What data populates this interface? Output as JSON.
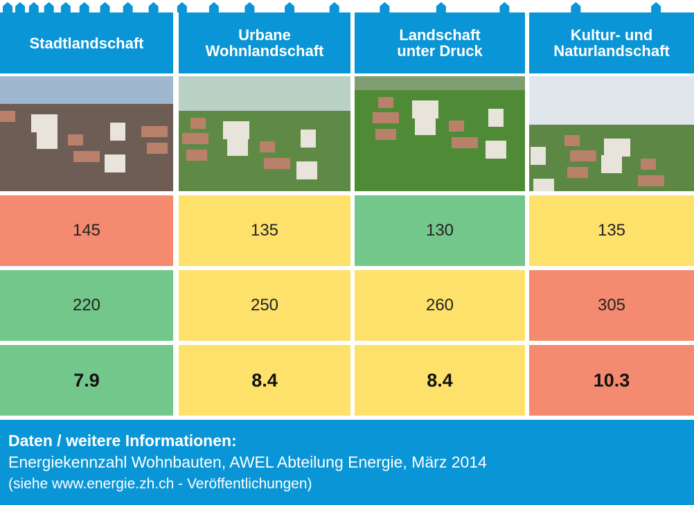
{
  "table": {
    "columns": [
      {
        "lines": [
          "Stadtlandschaft"
        ]
      },
      {
        "lines": [
          "Urbane",
          "Wohnlandschaft"
        ]
      },
      {
        "lines": [
          "Landschaft",
          "unter Druck"
        ]
      },
      {
        "lines": [
          "Kultur- und",
          "Naturlandschaft"
        ]
      }
    ],
    "rows": [
      {
        "bold": false,
        "cells": [
          {
            "value": 145,
            "color": "#f48a6f"
          },
          {
            "value": 135,
            "color": "#fde16b"
          },
          {
            "value": 130,
            "color": "#74c78b"
          },
          {
            "value": 135,
            "color": "#fde16b"
          }
        ]
      },
      {
        "bold": false,
        "cells": [
          {
            "value": 220,
            "color": "#74c78b"
          },
          {
            "value": 250,
            "color": "#fde16b"
          },
          {
            "value": 260,
            "color": "#fde16b"
          },
          {
            "value": 305,
            "color": "#f48a6f"
          }
        ]
      },
      {
        "bold": true,
        "cells": [
          {
            "value": 7.9,
            "color": "#74c78b"
          },
          {
            "value": 8.4,
            "color": "#fde16b"
          },
          {
            "value": 8.4,
            "color": "#fde16b"
          },
          {
            "value": 10.3,
            "color": "#f48a6f"
          }
        ]
      }
    ]
  },
  "footer": {
    "title": "Daten / weitere Informationen:",
    "lines": [
      "Energiekennzahl Wohnbauten, AWEL Abteilung Energie, März 2014",
      "(siehe www.energie.zh.ch - Veröffentlichungen)"
    ]
  }
}
